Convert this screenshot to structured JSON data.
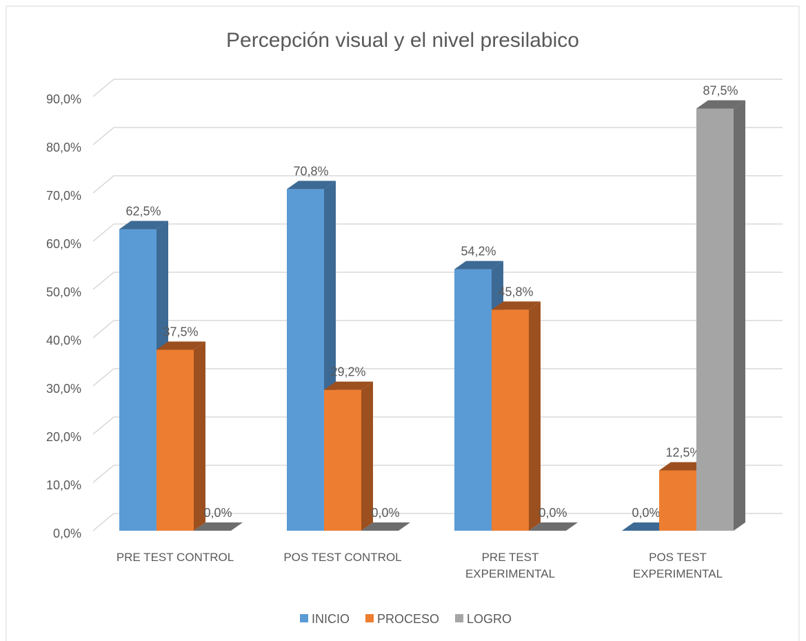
{
  "chart_data": {
    "type": "bar3d",
    "title": "Percepción visual y el nivel presilabico",
    "categories": [
      "PRE TEST CONTROL",
      "POS TEST CONTROL",
      "PRE TEST EXPERIMENTAL",
      "POS TEST EXPERIMENTAL"
    ],
    "series": [
      {
        "name": "INICIO",
        "color": "#5b9bd5",
        "side_color": "#3d6a94",
        "values": [
          62.5,
          70.8,
          54.2,
          0
        ],
        "value_labels": [
          "62,5%",
          "70,8%",
          "54,2%",
          "0,0%"
        ]
      },
      {
        "name": "PROCESO",
        "color": "#ed7d31",
        "side_color": "#9c501f",
        "values": [
          37.5,
          29.2,
          45.8,
          12.5
        ],
        "value_labels": [
          "37,5%",
          "29,2%",
          "45,8%",
          "12,5%"
        ]
      },
      {
        "name": "LOGRO",
        "color": "#a5a5a5",
        "side_color": "#6d6d6d",
        "values": [
          0,
          0,
          0,
          87.5
        ],
        "value_labels": [
          "0,0%",
          "0,0%",
          "0,0%",
          "87,5%"
        ]
      }
    ],
    "ylim": [
      0,
      90
    ],
    "yticks": [
      {
        "value": 0,
        "label": "0,0%"
      },
      {
        "value": 10,
        "label": "10,0%"
      },
      {
        "value": 20,
        "label": "20,0%"
      },
      {
        "value": 30,
        "label": "30,0%"
      },
      {
        "value": 40,
        "label": "40,0%"
      },
      {
        "value": 50,
        "label": "50,0%"
      },
      {
        "value": 60,
        "label": "60,0%"
      },
      {
        "value": 70,
        "label": "70,0%"
      },
      {
        "value": 80,
        "label": "80,0%"
      },
      {
        "value": 90,
        "label": "90,0%"
      }
    ],
    "grid": true,
    "legend": "bottom"
  }
}
